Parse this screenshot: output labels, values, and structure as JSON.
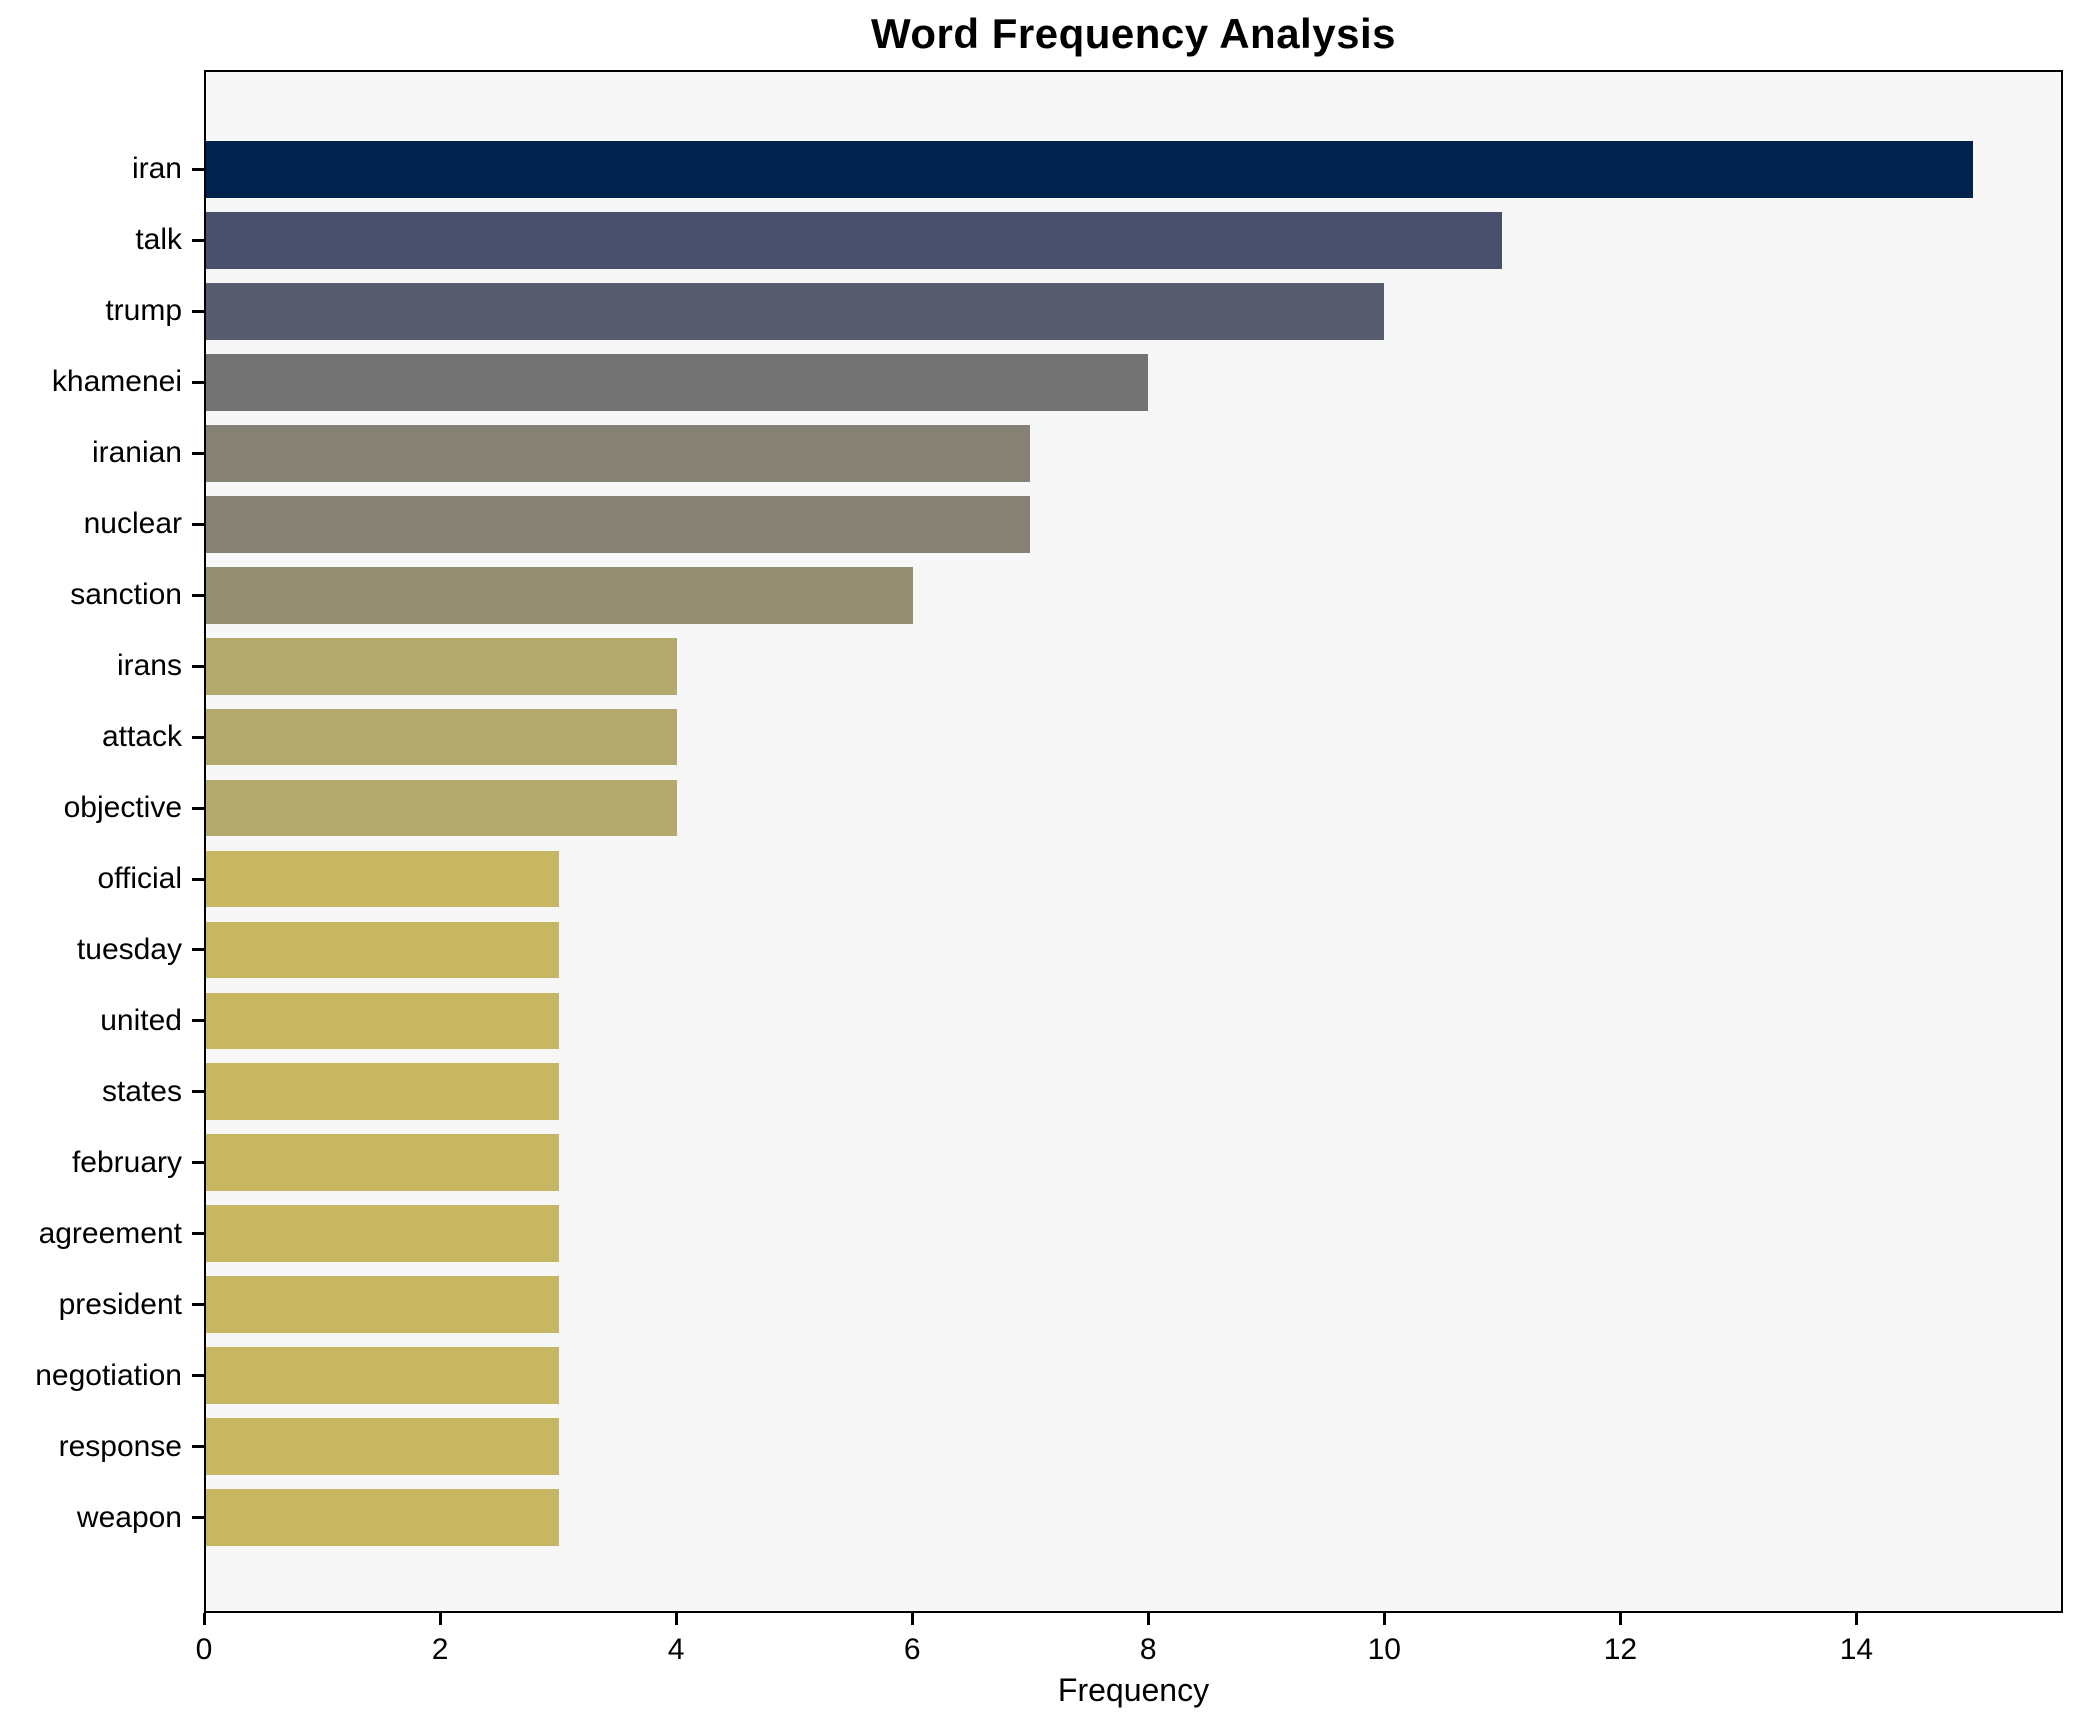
{
  "chart_data": {
    "type": "bar",
    "orientation": "horizontal",
    "title": "Word Frequency Analysis",
    "xlabel": "Frequency",
    "ylabel": "",
    "categories": [
      "iran",
      "talk",
      "trump",
      "khamenei",
      "iranian",
      "nuclear",
      "sanction",
      "irans",
      "attack",
      "objective",
      "official",
      "tuesday",
      "united",
      "states",
      "february",
      "agreement",
      "president",
      "negotiation",
      "response",
      "weapon"
    ],
    "values": [
      15,
      11,
      10,
      8,
      7,
      7,
      6,
      4,
      4,
      4,
      3,
      3,
      3,
      3,
      3,
      3,
      3,
      3,
      3,
      3
    ],
    "bar_colors": [
      "#00234d",
      "#48506e",
      "#575d6e",
      "#737373",
      "#858174",
      "#858174",
      "#968e70",
      "#b4a96c",
      "#b4a96c",
      "#b4a96c",
      "#c7b763",
      "#c7b763",
      "#c7b763",
      "#c7b763",
      "#c7b763",
      "#c7b763",
      "#c7b763",
      "#c7b763",
      "#c7b763",
      "#c7b763"
    ],
    "xticks": [
      0,
      2,
      4,
      6,
      8,
      10,
      12,
      14
    ],
    "xlim": [
      0,
      15.75
    ],
    "grid": false,
    "legend": false,
    "plot_background": "#f7f7f7",
    "spine_color": "#000000"
  }
}
